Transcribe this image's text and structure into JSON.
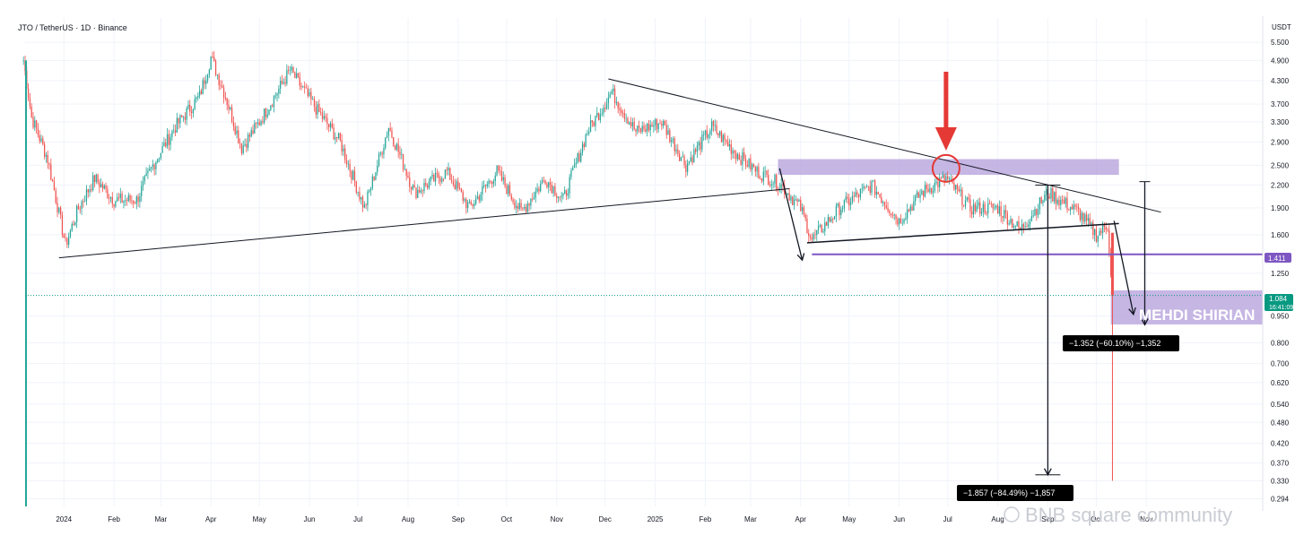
{
  "header": {
    "title": "JTO / TetherUS · 1D · Binance",
    "currency": "USDT"
  },
  "colors": {
    "up": "#26a69a",
    "down": "#ef5350",
    "support_line": "#7e57c2",
    "zone": "#b39ddb",
    "arrow_red": "#e53935",
    "measure_box": "#000000",
    "current_price": "#089981"
  },
  "labels": {
    "support_price": "1.411",
    "current_price": "1.084",
    "countdown": "16:41:09",
    "signature": "MEHDI SHIRIAN",
    "measure_1": "−1.352 (−60.10%) −1,352",
    "measure_2": "−1.857 (−84.49%) −1,857",
    "watermark": "BNB square community"
  },
  "chart_data": {
    "type": "candlestick",
    "title": "JTO / TetherUS · 1D · Binance",
    "ylabel": "USDT",
    "yscale": "log",
    "ylim": [
      0.28,
      5.8
    ],
    "xlim": [
      "2023-12-08",
      "2026-01-12"
    ],
    "y_ticks": [
      "5.500",
      "4.900",
      "4.300",
      "3.700",
      "3.300",
      "2.900",
      "2.500",
      "2.200",
      "1.900",
      "1.600",
      "1.250",
      "0.950",
      "0.800",
      "0.700",
      "0.620",
      "0.540",
      "0.480",
      "0.420",
      "0.370",
      "0.330",
      "0.294"
    ],
    "x_ticks": [
      {
        "label": "2024",
        "date": "2024-01-01"
      },
      {
        "label": "Feb",
        "date": "2024-02-01"
      },
      {
        "label": "Mar",
        "date": "2024-03-01"
      },
      {
        "label": "Apr",
        "date": "2024-04-01"
      },
      {
        "label": "May",
        "date": "2024-05-01"
      },
      {
        "label": "Jun",
        "date": "2024-06-01"
      },
      {
        "label": "Jul",
        "date": "2024-07-01"
      },
      {
        "label": "Aug",
        "date": "2024-08-01"
      },
      {
        "label": "Sep",
        "date": "2024-09-01"
      },
      {
        "label": "Oct",
        "date": "2024-10-01"
      },
      {
        "label": "Nov",
        "date": "2024-11-01"
      },
      {
        "label": "Dec",
        "date": "2024-12-01"
      },
      {
        "label": "2025",
        "date": "2025-01-01"
      },
      {
        "label": "Feb",
        "date": "2025-02-01"
      },
      {
        "label": "Mar",
        "date": "2025-03-01"
      },
      {
        "label": "Apr",
        "date": "2025-04-01"
      },
      {
        "label": "May",
        "date": "2025-05-01"
      },
      {
        "label": "Jun",
        "date": "2025-06-01"
      },
      {
        "label": "Jul",
        "date": "2025-07-01"
      },
      {
        "label": "Aug",
        "date": "2025-08-01"
      },
      {
        "label": "Sep",
        "date": "2025-09-01"
      },
      {
        "label": "Oct",
        "date": "2025-10-01"
      },
      {
        "label": "Nov",
        "date": "2025-11-01"
      }
    ],
    "price_path": [
      {
        "date": "2023-12-07",
        "close": 4.9
      },
      {
        "date": "2023-12-12",
        "close": 3.4
      },
      {
        "date": "2023-12-22",
        "close": 2.6
      },
      {
        "date": "2024-01-02",
        "close": 1.5
      },
      {
        "date": "2024-01-10",
        "close": 1.9
      },
      {
        "date": "2024-01-20",
        "close": 2.3
      },
      {
        "date": "2024-02-01",
        "close": 2.0
      },
      {
        "date": "2024-02-15",
        "close": 2.0
      },
      {
        "date": "2024-02-25",
        "close": 2.5
      },
      {
        "date": "2024-03-10",
        "close": 3.2
      },
      {
        "date": "2024-03-25",
        "close": 3.9
      },
      {
        "date": "2024-04-01",
        "close": 5.0
      },
      {
        "date": "2024-04-10",
        "close": 3.9
      },
      {
        "date": "2024-04-20",
        "close": 2.8
      },
      {
        "date": "2024-05-01",
        "close": 3.3
      },
      {
        "date": "2024-05-20",
        "close": 4.6
      },
      {
        "date": "2024-06-05",
        "close": 3.6
      },
      {
        "date": "2024-06-20",
        "close": 2.9
      },
      {
        "date": "2024-07-05",
        "close": 1.9
      },
      {
        "date": "2024-07-20",
        "close": 3.2
      },
      {
        "date": "2024-08-05",
        "close": 2.1
      },
      {
        "date": "2024-08-25",
        "close": 2.4
      },
      {
        "date": "2024-09-08",
        "close": 1.9
      },
      {
        "date": "2024-09-25",
        "close": 2.4
      },
      {
        "date": "2024-10-10",
        "close": 1.85
      },
      {
        "date": "2024-10-25",
        "close": 2.3
      },
      {
        "date": "2024-11-05",
        "close": 2.0
      },
      {
        "date": "2024-11-20",
        "close": 3.1
      },
      {
        "date": "2024-12-05",
        "close": 4.0
      },
      {
        "date": "2024-12-20",
        "close": 3.1
      },
      {
        "date": "2025-01-05",
        "close": 3.3
      },
      {
        "date": "2025-01-20",
        "close": 2.5
      },
      {
        "date": "2025-02-05",
        "close": 3.2
      },
      {
        "date": "2025-02-20",
        "close": 2.7
      },
      {
        "date": "2025-03-05",
        "close": 2.4
      },
      {
        "date": "2025-03-20",
        "close": 2.2
      },
      {
        "date": "2025-04-01",
        "close": 1.9
      },
      {
        "date": "2025-04-08",
        "close": 1.55
      },
      {
        "date": "2025-04-25",
        "close": 1.9
      },
      {
        "date": "2025-05-15",
        "close": 2.2
      },
      {
        "date": "2025-06-01",
        "close": 1.75
      },
      {
        "date": "2025-06-15",
        "close": 2.1
      },
      {
        "date": "2025-06-30",
        "close": 2.3
      },
      {
        "date": "2025-07-15",
        "close": 1.9
      },
      {
        "date": "2025-08-01",
        "close": 1.9
      },
      {
        "date": "2025-08-15",
        "close": 1.65
      },
      {
        "date": "2025-09-01",
        "close": 2.1
      },
      {
        "date": "2025-09-20",
        "close": 1.85
      },
      {
        "date": "2025-10-01",
        "close": 1.6
      },
      {
        "date": "2025-10-08",
        "close": 1.7
      },
      {
        "date": "2025-10-11",
        "close": 1.084
      }
    ],
    "last_candle": {
      "date": "2025-10-11",
      "close": 1.084,
      "low": 0.33
    },
    "annotations": {
      "resistance_zone": {
        "from": "2025-03-18",
        "to": "2025-10-15",
        "low": 2.35,
        "high": 2.6
      },
      "target_zone": {
        "from": "2025-10-10",
        "to": "2026-01-12",
        "low": 0.9,
        "high": 1.12
      },
      "support_level": {
        "value": 1.411,
        "from": "2025-04-08"
      },
      "descending_trendline": [
        {
          "date": "2024-12-03",
          "price": 4.35
        },
        {
          "date": "2025-11-10",
          "price": 1.85
        }
      ],
      "lower_trendline": [
        {
          "date": "2023-12-29",
          "price": 1.38
        },
        {
          "date": "2025-03-25",
          "price": 2.15
        }
      ],
      "triangle_lower": [
        {
          "date": "2025-04-05",
          "price": 1.52
        },
        {
          "date": "2025-10-15",
          "price": 1.72
        }
      ],
      "red_circle": {
        "date": "2025-06-30",
        "price": 2.45
      },
      "measure_1": {
        "from_price": 2.25,
        "to_price": 0.898,
        "date": "2025-10-31",
        "change": "−1.352 (−60.10%) −1,352"
      },
      "measure_2": {
        "from_price": 2.2,
        "to_price": 0.343,
        "date": "2025-09-01",
        "change": "−1.857 (−84.49%) −1,857"
      }
    }
  }
}
